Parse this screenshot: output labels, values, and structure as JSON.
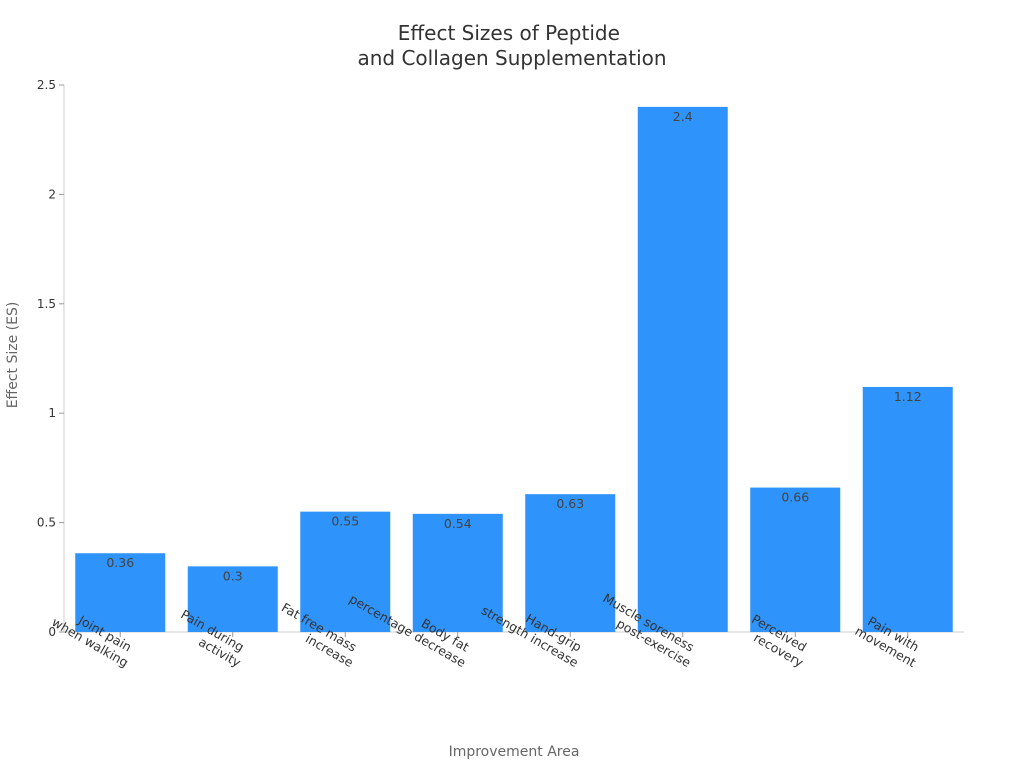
{
  "chart_data": {
    "type": "bar",
    "title": [
      "Effect Sizes of Peptide",
      "and Collagen Supplementation"
    ],
    "xlabel": "Improvement Area",
    "ylabel": "Effect Size (ES)",
    "categories": [
      [
        "Joint pain",
        "when walking"
      ],
      [
        "Pain during",
        "activity"
      ],
      [
        "Fat free mass",
        "increase"
      ],
      [
        "Body fat",
        "percentage decrease"
      ],
      [
        "Hand-grip",
        "strength increase"
      ],
      [
        "Muscle soreness",
        "post-exercise"
      ],
      [
        "Perceived",
        "recovery"
      ],
      [
        "Pain with",
        "movement"
      ]
    ],
    "values": [
      0.36,
      0.3,
      0.55,
      0.54,
      0.63,
      2.4,
      0.66,
      1.12
    ],
    "data_labels": [
      "0.36",
      "0.3",
      "0.55",
      "0.54",
      "0.63",
      "2.4",
      "0.66",
      "1.12"
    ],
    "ylim": [
      0,
      2.5
    ],
    "yticks": [
      0,
      0.5,
      1,
      1.5,
      2,
      2.5
    ],
    "ytick_labels": [
      "0",
      "0.5",
      "1",
      "1.5",
      "2",
      "2.5"
    ],
    "grid": false,
    "legend": "none",
    "bar_color": "#2e93fa"
  }
}
